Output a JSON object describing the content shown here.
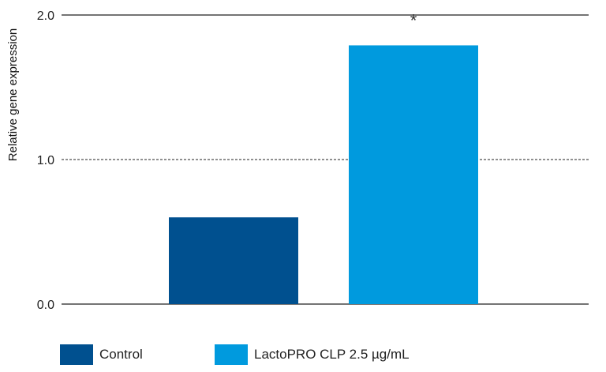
{
  "chart_data": {
    "type": "bar",
    "ylabel": "Relative gene expression",
    "ylim": [
      0,
      2.0
    ],
    "yticks": [
      "0.0",
      "1.0",
      "2.0"
    ],
    "grid": "horizontal",
    "reference_line": 1.0,
    "legend_position": "bottom",
    "series": [
      {
        "name": "Control",
        "value": 0.6,
        "color": "#00508f"
      },
      {
        "name": "LactoPRO CLP 2.5 µg/mL",
        "value": 1.79,
        "color": "#009ade"
      }
    ],
    "annotations": [
      {
        "text": "*",
        "series_index": 1
      }
    ]
  }
}
